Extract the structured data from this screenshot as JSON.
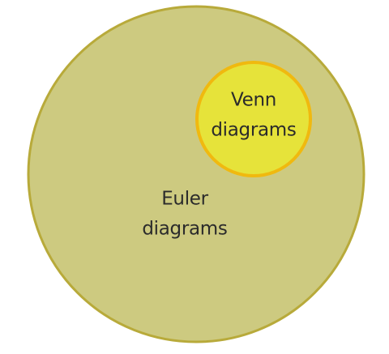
{
  "diagram": {
    "type": "euler",
    "outer_set": {
      "label_line1": "Euler",
      "label_line2": "diagrams",
      "fill": "#cdca80",
      "stroke": "#b8aa3a"
    },
    "inner_set": {
      "label_line1": "Venn",
      "label_line2": "diagrams",
      "fill": "#e6e33a",
      "stroke": "#f0b90f"
    }
  }
}
